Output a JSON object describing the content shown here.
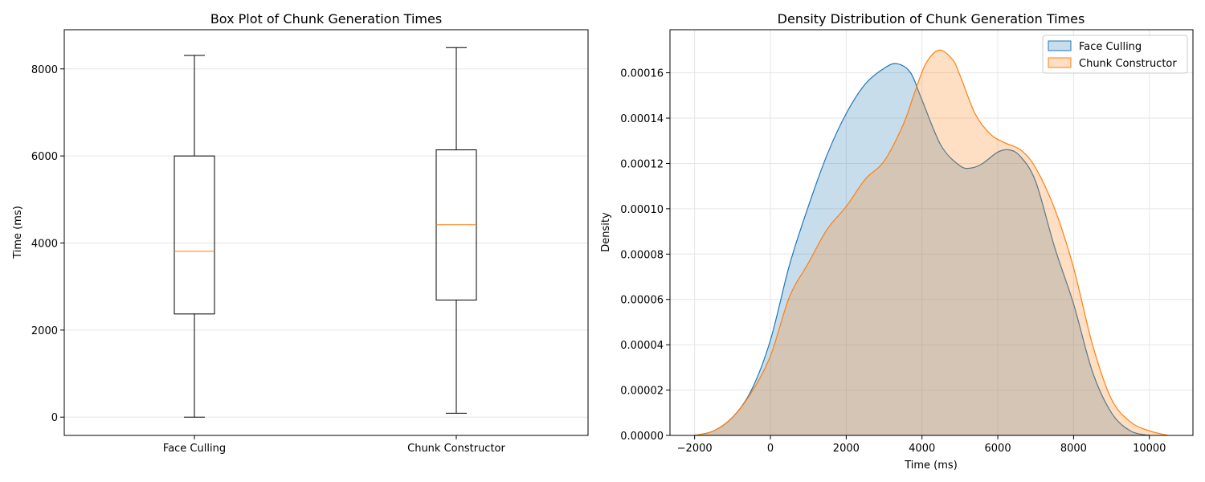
{
  "chart_data": [
    {
      "type": "box",
      "title": "Box Plot of Chunk Generation Times",
      "xlabel": "",
      "ylabel": "Time (ms)",
      "ylim": [
        -420,
        8900
      ],
      "yticks": [
        0,
        2000,
        4000,
        6000,
        8000
      ],
      "grid": true,
      "categories": [
        "Face Culling",
        "Chunk Constructor"
      ],
      "boxes": [
        {
          "name": "Face Culling",
          "min": 0,
          "q1": 2370,
          "median": 3810,
          "q3": 6000,
          "max": 8310
        },
        {
          "name": "Chunk Constructor",
          "min": 90,
          "q1": 2690,
          "median": 4420,
          "q3": 6140,
          "max": 8490
        }
      ],
      "colors": {
        "box": "#000000",
        "median": "#ff7f0e"
      }
    },
    {
      "type": "area",
      "title": "Density Distribution of Chunk Generation Times",
      "xlabel": "Time (ms)",
      "ylabel": "Density",
      "xlim": [
        -2650,
        11150
      ],
      "ylim": [
        0,
        0.000179
      ],
      "xticks": [
        -2000,
        0,
        2000,
        4000,
        6000,
        8000,
        10000
      ],
      "xtick_labels": [
        "−2000",
        "0",
        "2000",
        "4000",
        "6000",
        "8000",
        "10000"
      ],
      "yticks": [
        0,
        2e-05,
        4e-05,
        6e-05,
        8e-05,
        0.0001,
        0.00012,
        0.00014,
        0.00016
      ],
      "ytick_labels": [
        "0.00000",
        "0.00002",
        "0.00004",
        "0.00006",
        "0.00008",
        "0.00010",
        "0.00012",
        "0.00014",
        "0.00016"
      ],
      "grid": true,
      "legend_position": "top-right",
      "series": [
        {
          "name": "Face Culling",
          "color": "#1f77b4",
          "x": [
            -2000,
            -1500,
            -1000,
            -500,
            0,
            500,
            1000,
            1500,
            2000,
            2500,
            3000,
            3340,
            3700,
            4000,
            4500,
            5000,
            5300,
            5600,
            6000,
            6300,
            6600,
            7000,
            7500,
            8000,
            8500,
            9000,
            9500,
            10000
          ],
          "y": [
            0,
            2e-06,
            8e-06,
            2e-05,
            4.2e-05,
            7.5e-05,
            0.000101,
            0.000124,
            0.000142,
            0.000155,
            0.000162,
            0.000164,
            0.00016,
            0.000148,
            0.000128,
            0.000119,
            0.000118,
            0.00012,
            0.000125,
            0.000126,
            0.000123,
            0.000112,
            8.3e-05,
            5.8e-05,
            2.8e-05,
            1e-05,
            2e-06,
            0
          ]
        },
        {
          "name": "Chunk Constructor",
          "color": "#ff7f0e",
          "x": [
            -2000,
            -1500,
            -1000,
            -500,
            0,
            500,
            1000,
            1500,
            2000,
            2500,
            3000,
            3500,
            3800,
            4100,
            4450,
            4800,
            5000,
            5400,
            5800,
            6200,
            6600,
            7000,
            7500,
            8000,
            8500,
            9000,
            9500,
            10000,
            10500
          ],
          "y": [
            0,
            2e-06,
            8e-06,
            1.9e-05,
            3.5e-05,
            6.1e-05,
            7.6e-05,
            9.1e-05,
            0.000101,
            0.000113,
            0.000121,
            0.000137,
            0.000151,
            0.000164,
            0.00017,
            0.000166,
            0.000159,
            0.000142,
            0.000133,
            0.000129,
            0.000126,
            0.000118,
            0.0001,
            7.4e-05,
            4e-05,
            1.6e-05,
            6e-06,
            2e-06,
            0
          ]
        }
      ]
    }
  ]
}
